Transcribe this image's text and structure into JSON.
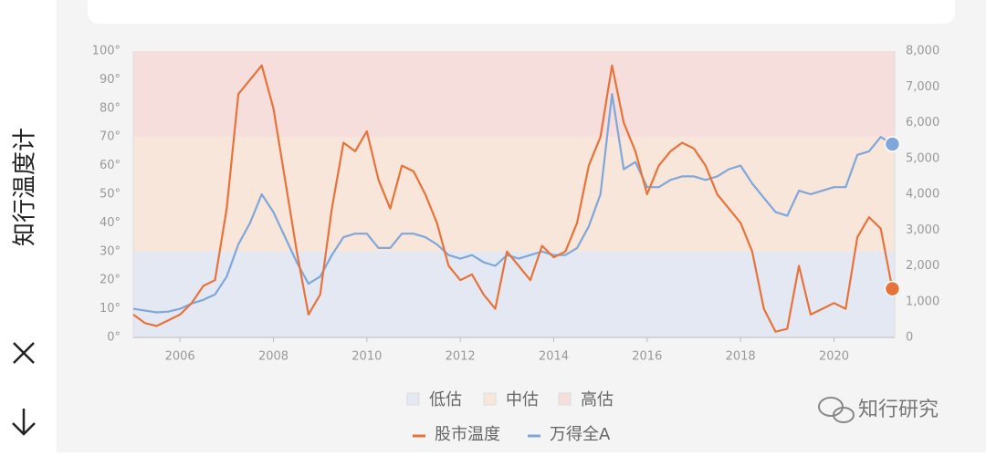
{
  "sidebar_title": "知行温度计",
  "watermark": "知行研究",
  "chart_data": {
    "type": "line",
    "x": [
      2005,
      2005.25,
      2005.5,
      2005.75,
      2006,
      2006.25,
      2006.5,
      2006.75,
      2007,
      2007.25,
      2007.5,
      2007.75,
      2008,
      2008.25,
      2008.5,
      2008.75,
      2009,
      2009.25,
      2009.5,
      2009.75,
      2010,
      2010.25,
      2010.5,
      2010.75,
      2011,
      2011.25,
      2011.5,
      2011.75,
      2012,
      2012.25,
      2012.5,
      2012.75,
      2013,
      2013.25,
      2013.5,
      2013.75,
      2014,
      2014.25,
      2014.5,
      2014.75,
      2015,
      2015.25,
      2015.5,
      2015.75,
      2016,
      2016.25,
      2016.5,
      2016.75,
      2017,
      2017.25,
      2017.5,
      2017.75,
      2018,
      2018.25,
      2018.5,
      2018.75,
      2019,
      2019.25,
      2019.5,
      2019.75,
      2020,
      2020.25,
      2020.5,
      2020.75,
      2021,
      2021.25
    ],
    "series": [
      {
        "name": "股市温度",
        "color": "#e8733a",
        "values": [
          8,
          5,
          4,
          6,
          8,
          12,
          18,
          20,
          45,
          85,
          90,
          95,
          80,
          55,
          30,
          8,
          15,
          45,
          68,
          65,
          72,
          55,
          45,
          60,
          58,
          50,
          40,
          25,
          20,
          22,
          15,
          10,
          30,
          25,
          20,
          32,
          28,
          30,
          40,
          60,
          70,
          95,
          75,
          65,
          50,
          60,
          65,
          68,
          66,
          60,
          50,
          45,
          40,
          30,
          10,
          2,
          3,
          25,
          8,
          10,
          12,
          10,
          35,
          42,
          38,
          17
        ]
      },
      {
        "name": "万得全A",
        "color": "#7fa7d9",
        "axis": "y2",
        "values": [
          800,
          750,
          700,
          720,
          800,
          950,
          1050,
          1200,
          1700,
          2600,
          3200,
          4000,
          3500,
          2800,
          2100,
          1500,
          1700,
          2300,
          2800,
          2900,
          2900,
          2500,
          2500,
          2900,
          2900,
          2800,
          2600,
          2300,
          2200,
          2300,
          2100,
          2000,
          2300,
          2200,
          2300,
          2400,
          2300,
          2300,
          2500,
          3100,
          4000,
          6800,
          4700,
          4900,
          4200,
          4200,
          4400,
          4500,
          4500,
          4400,
          4500,
          4700,
          4800,
          4300,
          3900,
          3500,
          3400,
          4100,
          4000,
          4100,
          4200,
          4200,
          5100,
          5200,
          5600,
          5400
        ]
      }
    ],
    "bands": [
      {
        "name": "低估",
        "from": 0,
        "to": 30,
        "color": "#e3e8f3"
      },
      {
        "name": "中估",
        "from": 30,
        "to": 70,
        "color": "#f8e6da"
      },
      {
        "name": "高估",
        "from": 70,
        "to": 100,
        "color": "#f6dedd"
      }
    ],
    "xlim": [
      2005,
      2021.3
    ],
    "xticks": [
      2006,
      2008,
      2010,
      2012,
      2014,
      2016,
      2018,
      2020
    ],
    "ylim": [
      0,
      100
    ],
    "yticks": [
      {
        "value": 0,
        "label": "0°"
      },
      {
        "value": 10,
        "label": "10°"
      },
      {
        "value": 20,
        "label": "20°"
      },
      {
        "value": 30,
        "label": "30°"
      },
      {
        "value": 40,
        "label": "40°"
      },
      {
        "value": 50,
        "label": "50°"
      },
      {
        "value": 60,
        "label": "60°"
      },
      {
        "value": 70,
        "label": "70°"
      },
      {
        "value": 80,
        "label": "80°"
      },
      {
        "value": 90,
        "label": "90°"
      },
      {
        "value": 100,
        "label": "100°"
      }
    ],
    "y2lim": [
      0,
      8000
    ],
    "y2ticks": [
      0,
      {
        "value": 1000,
        "label": "1,000"
      },
      {
        "value": 2000,
        "label": "2,000"
      },
      {
        "value": 3000,
        "label": "3,000"
      },
      {
        "value": 4000,
        "label": "4,000"
      },
      {
        "value": 5000,
        "label": "5,000"
      },
      {
        "value": 6000,
        "label": "6,000"
      },
      {
        "value": 7000,
        "label": "7,000"
      },
      {
        "value": 8000,
        "label": "8,000"
      }
    ]
  }
}
